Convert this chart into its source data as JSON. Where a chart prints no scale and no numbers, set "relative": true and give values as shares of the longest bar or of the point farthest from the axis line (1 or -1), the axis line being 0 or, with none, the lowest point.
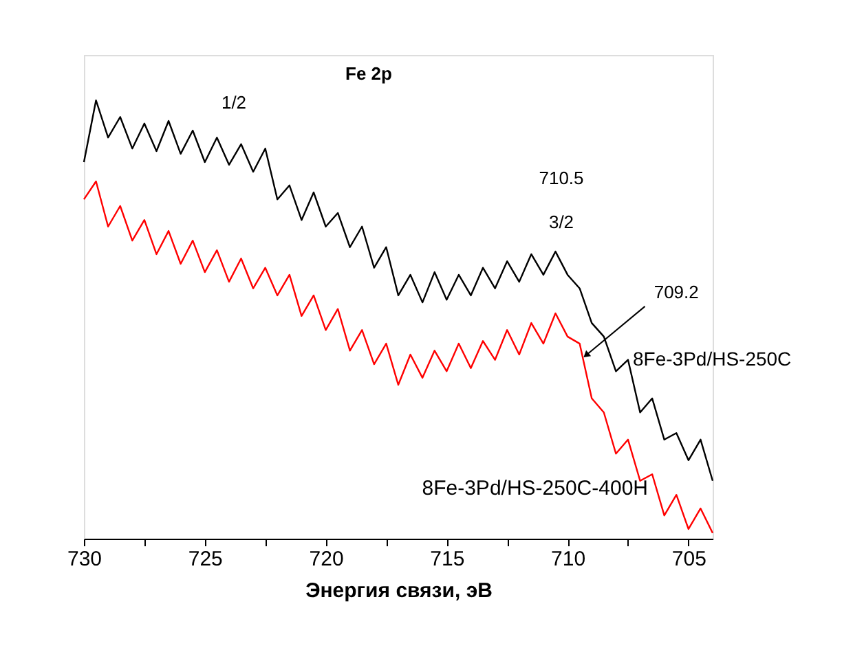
{
  "chart_data": {
    "type": "line",
    "title": "Fe 2p",
    "xlabel": "Энергия связи, эВ",
    "relative": true,
    "grid": false,
    "tick_labels": "x",
    "marker": "none",
    "line_style": "solid",
    "xlim": [
      730,
      704
    ],
    "xticks": [
      730,
      {
        "value": 727.5,
        "label": null
      },
      725,
      {
        "value": 722.5,
        "label": null
      },
      720,
      {
        "value": 717.5,
        "label": null
      },
      715,
      {
        "value": 712.5,
        "label": null
      },
      710,
      {
        "value": 707.5,
        "label": null
      },
      705
    ],
    "x": [
      730,
      729.5,
      729,
      728.5,
      728,
      727.5,
      727,
      726.5,
      726,
      725.5,
      725,
      724.5,
      724,
      723.5,
      723,
      722.5,
      722,
      721.5,
      721,
      720.5,
      720,
      719.5,
      719,
      718.5,
      718,
      717.5,
      717,
      716.5,
      716,
      715.5,
      715,
      714.5,
      714,
      713.5,
      713,
      712.5,
      712,
      711.5,
      711,
      710.5,
      710,
      709.5,
      709,
      708.5,
      708,
      707.5,
      707,
      706.5,
      706,
      705.5,
      705,
      704.5,
      704
    ],
    "series": [
      {
        "name": "8Fe-3Pd/HS-250C",
        "color": "#000000",
        "values": [
          0.859,
          1.0,
          0.915,
          0.962,
          0.89,
          0.947,
          0.884,
          0.953,
          0.878,
          0.931,
          0.859,
          0.915,
          0.853,
          0.9,
          0.837,
          0.89,
          0.774,
          0.806,
          0.727,
          0.79,
          0.712,
          0.743,
          0.665,
          0.712,
          0.618,
          0.665,
          0.555,
          0.602,
          0.539,
          0.608,
          0.545,
          0.602,
          0.555,
          0.618,
          0.571,
          0.633,
          0.586,
          0.649,
          0.602,
          0.655,
          0.602,
          0.571,
          0.492,
          0.461,
          0.382,
          0.408,
          0.288,
          0.32,
          0.226,
          0.241,
          0.179,
          0.226,
          0.132
        ]
      },
      {
        "name": "8Fe-3Pd/HS-250C-400H",
        "color": "#ff0000",
        "values": [
          0.774,
          0.815,
          0.712,
          0.759,
          0.68,
          0.727,
          0.649,
          0.702,
          0.627,
          0.68,
          0.608,
          0.658,
          0.586,
          0.639,
          0.571,
          0.618,
          0.555,
          0.602,
          0.508,
          0.555,
          0.476,
          0.524,
          0.429,
          0.476,
          0.398,
          0.445,
          0.351,
          0.42,
          0.367,
          0.429,
          0.382,
          0.445,
          0.389,
          0.451,
          0.408,
          0.476,
          0.42,
          0.492,
          0.445,
          0.514,
          0.461,
          0.445,
          0.32,
          0.288,
          0.194,
          0.226,
          0.132,
          0.147,
          0.053,
          0.1,
          0.022,
          0.069,
          0.013
        ]
      }
    ],
    "annotations": [
      "1/2",
      "710.5",
      "3/2",
      {
        "text": "709.2",
        "x": 709.2,
        "y": 0.42
      }
    ]
  }
}
